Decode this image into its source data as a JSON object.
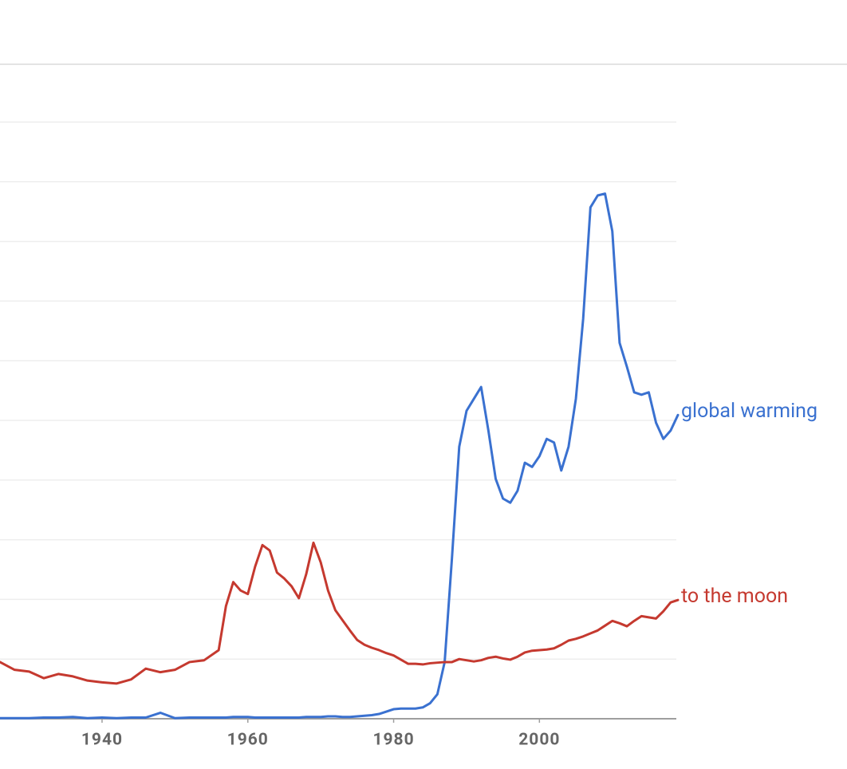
{
  "chart_data": {
    "type": "line",
    "x": [
      1926,
      1928,
      1930,
      1932,
      1934,
      1936,
      1938,
      1940,
      1942,
      1944,
      1946,
      1948,
      1950,
      1952,
      1954,
      1956,
      1957,
      1958,
      1959,
      1960,
      1961,
      1962,
      1963,
      1964,
      1965,
      1966,
      1967,
      1968,
      1969,
      1970,
      1971,
      1972,
      1973,
      1974,
      1975,
      1976,
      1977,
      1978,
      1979,
      1980,
      1981,
      1982,
      1983,
      1984,
      1985,
      1986,
      1987,
      1988,
      1989,
      1990,
      1991,
      1992,
      1993,
      1994,
      1995,
      1996,
      1997,
      1998,
      1999,
      2000,
      2001,
      2002,
      2003,
      2004,
      2005,
      2006,
      2007,
      2008,
      2009,
      2010,
      2011,
      2012,
      2013,
      2014,
      2015,
      2016,
      2017,
      2018,
      2019
    ],
    "series": [
      {
        "name": "global warming",
        "color": "#3a71d0",
        "values": [
          0.01,
          0.01,
          0.01,
          0.02,
          0.02,
          0.03,
          0.01,
          0.02,
          0.01,
          0.02,
          0.02,
          0.1,
          0.01,
          0.02,
          0.02,
          0.02,
          0.02,
          0.03,
          0.03,
          0.03,
          0.02,
          0.02,
          0.02,
          0.02,
          0.02,
          0.02,
          0.02,
          0.03,
          0.03,
          0.03,
          0.04,
          0.04,
          0.03,
          0.03,
          0.04,
          0.05,
          0.06,
          0.08,
          0.12,
          0.16,
          0.17,
          0.17,
          0.17,
          0.19,
          0.26,
          0.41,
          0.95,
          2.69,
          4.56,
          5.16,
          5.36,
          5.56,
          4.83,
          4.02,
          3.69,
          3.62,
          3.82,
          4.29,
          4.22,
          4.4,
          4.69,
          4.63,
          4.16,
          4.56,
          5.36,
          6.7,
          8.57,
          8.77,
          8.8,
          8.17,
          6.3,
          5.9,
          5.47,
          5.43,
          5.47,
          4.96,
          4.69,
          4.83,
          5.09
        ]
      },
      {
        "name": "to the moon",
        "color": "#c5392f",
        "values": [
          0.95,
          0.82,
          0.79,
          0.68,
          0.75,
          0.71,
          0.64,
          0.61,
          0.59,
          0.66,
          0.84,
          0.78,
          0.82,
          0.95,
          0.98,
          1.15,
          1.89,
          2.29,
          2.15,
          2.09,
          2.55,
          2.91,
          2.82,
          2.45,
          2.35,
          2.22,
          2.02,
          2.42,
          2.95,
          2.62,
          2.15,
          1.82,
          1.65,
          1.48,
          1.32,
          1.24,
          1.19,
          1.15,
          1.1,
          1.06,
          0.99,
          0.92,
          0.92,
          0.91,
          0.93,
          0.94,
          0.95,
          0.95,
          1.0,
          0.98,
          0.96,
          0.98,
          1.02,
          1.04,
          1.01,
          0.99,
          1.04,
          1.11,
          1.14,
          1.15,
          1.16,
          1.18,
          1.24,
          1.31,
          1.34,
          1.38,
          1.43,
          1.48,
          1.56,
          1.64,
          1.6,
          1.55,
          1.64,
          1.72,
          1.7,
          1.68,
          1.8,
          1.95,
          1.99
        ]
      }
    ],
    "xlim": [
      1926,
      2019
    ],
    "xticks": [
      1940,
      1960,
      1980,
      2000
    ],
    "ylim": [
      0,
      10
    ],
    "yticks": [
      0,
      1,
      2,
      3,
      4,
      5,
      6,
      7,
      8,
      9,
      10
    ],
    "grid": true
  }
}
